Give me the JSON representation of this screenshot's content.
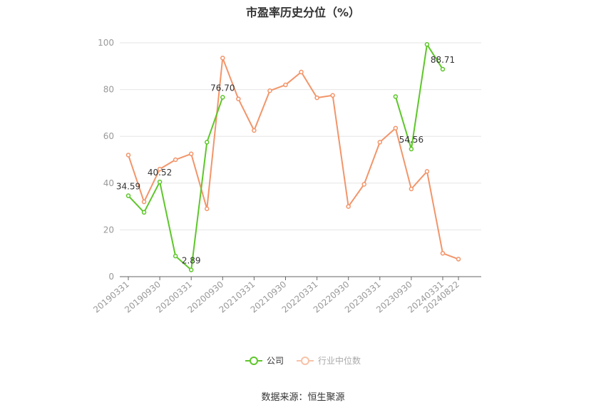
{
  "chart_data": {
    "type": "line",
    "title": "市盈率历史分位（%）",
    "x_labels": [
      "20190331",
      "20190930",
      "20200331",
      "20200930",
      "20210331",
      "20210930",
      "20220331",
      "20220930",
      "20230331",
      "20230930",
      "20240331",
      "20240822"
    ],
    "x_points": [
      "20190331",
      "20190630",
      "20190930",
      "20191231",
      "20200331",
      "20200630",
      "20200930",
      "20201231",
      "20210331",
      "20210630",
      "20210930",
      "20211231",
      "20220331",
      "20220630",
      "20220930",
      "20221231",
      "20230331",
      "20230630",
      "20230930",
      "20231231",
      "20240331",
      "20240822"
    ],
    "ylim": [
      0,
      100
    ],
    "yticks": [
      0,
      20,
      40,
      60,
      80,
      100
    ],
    "series": [
      {
        "name": "公司",
        "color": "#5ec62a",
        "values": [
          34.59,
          27.5,
          40.52,
          8.8,
          2.89,
          57.5,
          76.7,
          null,
          null,
          null,
          null,
          null,
          null,
          null,
          null,
          null,
          null,
          77.0,
          54.56,
          99.3,
          88.71,
          null
        ],
        "labels": {
          "0": "34.59",
          "2": "40.52",
          "4": "2.89",
          "6": "76.70",
          "18": "54.56",
          "20": "88.71"
        }
      },
      {
        "name": "行业中位数",
        "color": "#f2956a",
        "values": [
          52.0,
          32.0,
          46.0,
          50.0,
          52.5,
          29.0,
          93.5,
          76.0,
          62.5,
          79.5,
          82.0,
          87.5,
          76.5,
          77.5,
          30.0,
          39.5,
          57.5,
          63.5,
          37.5,
          45.0,
          10.0,
          7.5
        ]
      }
    ],
    "grid": true,
    "legend_position": "bottom"
  },
  "source": "数据来源：恒生聚源"
}
